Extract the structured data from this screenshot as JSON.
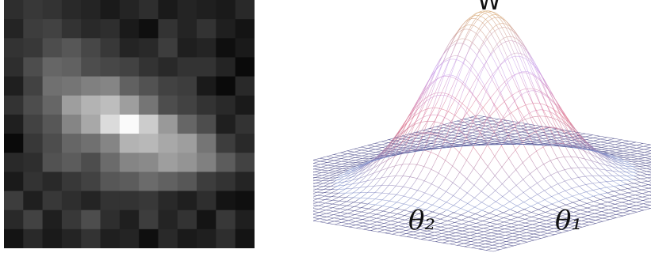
{
  "pixel_image": {
    "rows": 13,
    "cols": 13,
    "intensity": [
      [
        0.18,
        0.22,
        0.2,
        0.16,
        0.14,
        0.1,
        0.14,
        0.18,
        0.1,
        0.14,
        0.12,
        0.1,
        0.16
      ],
      [
        0.14,
        0.24,
        0.26,
        0.2,
        0.16,
        0.18,
        0.1,
        0.06,
        0.2,
        0.14,
        0.2,
        0.12,
        0.08
      ],
      [
        0.2,
        0.22,
        0.3,
        0.34,
        0.28,
        0.22,
        0.14,
        0.16,
        0.24,
        0.12,
        0.14,
        0.06,
        0.1
      ],
      [
        0.18,
        0.3,
        0.4,
        0.38,
        0.3,
        0.28,
        0.26,
        0.2,
        0.16,
        0.2,
        0.2,
        0.14,
        0.04
      ],
      [
        0.12,
        0.26,
        0.44,
        0.46,
        0.5,
        0.52,
        0.38,
        0.32,
        0.26,
        0.24,
        0.1,
        0.04,
        0.16
      ],
      [
        0.2,
        0.3,
        0.4,
        0.62,
        0.7,
        0.74,
        0.62,
        0.46,
        0.3,
        0.26,
        0.2,
        0.16,
        0.1
      ],
      [
        0.12,
        0.26,
        0.34,
        0.52,
        0.66,
        0.86,
        0.98,
        0.8,
        0.6,
        0.4,
        0.3,
        0.12,
        0.2
      ],
      [
        0.04,
        0.22,
        0.3,
        0.4,
        0.44,
        0.52,
        0.7,
        0.72,
        0.66,
        0.62,
        0.46,
        0.24,
        0.16
      ],
      [
        0.16,
        0.18,
        0.32,
        0.36,
        0.3,
        0.42,
        0.52,
        0.54,
        0.62,
        0.58,
        0.5,
        0.36,
        0.26
      ],
      [
        0.1,
        0.2,
        0.16,
        0.22,
        0.26,
        0.34,
        0.36,
        0.42,
        0.38,
        0.34,
        0.24,
        0.2,
        0.14
      ],
      [
        0.24,
        0.12,
        0.22,
        0.18,
        0.14,
        0.2,
        0.2,
        0.22,
        0.16,
        0.12,
        0.18,
        0.08,
        0.06
      ],
      [
        0.16,
        0.26,
        0.12,
        0.22,
        0.3,
        0.18,
        0.12,
        0.24,
        0.14,
        0.2,
        0.08,
        0.22,
        0.12
      ],
      [
        0.08,
        0.16,
        0.1,
        0.14,
        0.2,
        0.12,
        0.14,
        0.06,
        0.16,
        0.1,
        0.12,
        0.18,
        0.08
      ]
    ]
  },
  "surface": {
    "top_label": "W",
    "axis_labels": [
      "θ₂",
      "θ₁"
    ],
    "mesh_color": "#4a4a8a",
    "gradient_colors": [
      "#6f8fd0",
      "#e07a90",
      "#c9a2f0",
      "#d4a060"
    ]
  }
}
